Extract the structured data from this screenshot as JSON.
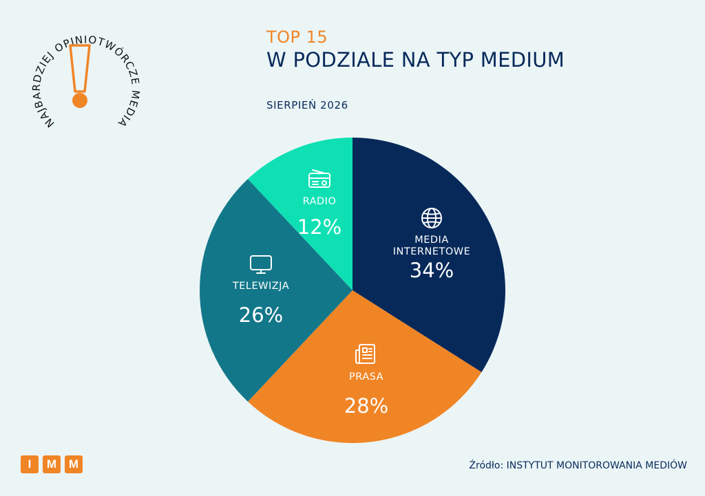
{
  "badge": {
    "text": "NAJBARDZIEJ OPINIOTWÓRCZE MEDIA",
    "icon": "exclamation-icon"
  },
  "title_top": "TOP 15",
  "title_main": "W PODZIALE NA TYP MEDIUM",
  "subtitle": "SIERPIEŃ 2026",
  "chart_data": {
    "type": "pie",
    "start": "top",
    "direction": "clockwise",
    "slices": [
      {
        "label_lines": [
          "MEDIA",
          "INTERNETOWE"
        ],
        "value": 34,
        "value_label": "34%",
        "color": "#07295a",
        "icon": "globe-icon"
      },
      {
        "label_lines": [
          "PRASA"
        ],
        "value": 28,
        "value_label": "28%",
        "color": "#f08526",
        "icon": "newspaper-icon"
      },
      {
        "label_lines": [
          "TELEWIZJA"
        ],
        "value": 26,
        "value_label": "26%",
        "color": "#13778a",
        "icon": "tv-icon"
      },
      {
        "label_lines": [
          "RADIO"
        ],
        "value": 12,
        "value_label": "12%",
        "color": "#0fe0b4",
        "icon": "radio-icon"
      }
    ]
  },
  "logo": {
    "letters": [
      "I",
      "M",
      "M"
    ]
  },
  "source": "Źródło: INSTYTUT MONITOROWANIA MEDIÓW"
}
